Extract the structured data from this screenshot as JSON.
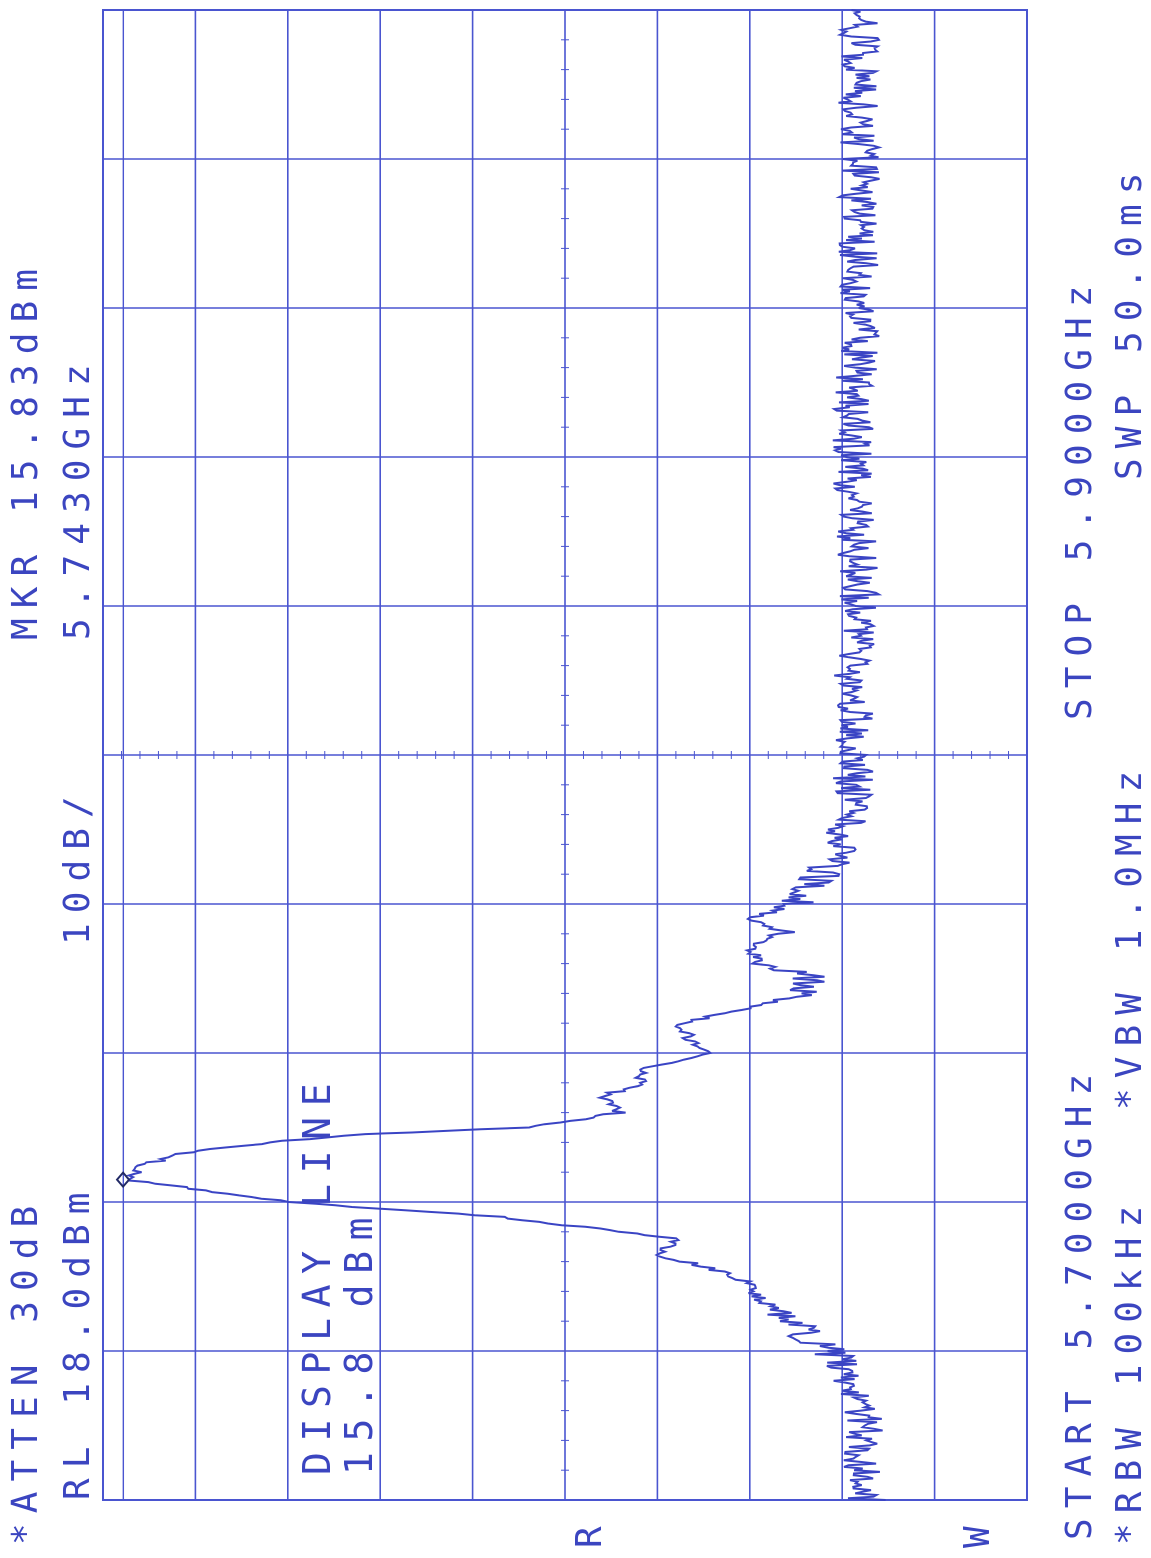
{
  "chart_data": {
    "type": "line",
    "x_unit": "GHz",
    "y_unit": "dBm",
    "x_range": [
      5.7,
      5.9
    ],
    "reference_level_dbm": 18.0,
    "scale_db_per_div": 10,
    "y_range": [
      -82.0,
      18.0
    ],
    "grid": true,
    "marker": {
      "freq_ghz": 5.743,
      "level_dbm": 15.83
    },
    "display_line_dbm": 15.8,
    "series": [
      {
        "x": [
          5.7,
          5.705,
          5.71,
          5.715,
          5.718,
          5.72,
          5.722,
          5.725,
          5.727,
          5.729,
          5.731,
          5.733,
          5.735,
          5.7365,
          5.738,
          5.74,
          5.743,
          5.745,
          5.747,
          5.749,
          5.75,
          5.752,
          5.754,
          5.756,
          5.758,
          5.76,
          5.762,
          5.764,
          5.766,
          5.768,
          5.77,
          5.772,
          5.774,
          5.776,
          5.778,
          5.78,
          5.785,
          5.79,
          5.8,
          5.81,
          5.82,
          5.83,
          5.84,
          5.85,
          5.86,
          5.87,
          5.88,
          5.89,
          5.9
        ],
        "y": [
          -64.5,
          -64.0,
          -64.5,
          -63.5,
          -62.0,
          -61.0,
          -58.0,
          -55.5,
          -53.0,
          -52.0,
          -48.0,
          -42.0,
          -44.5,
          -35.0,
          -25.0,
          -2.0,
          15.5,
          13.5,
          8.0,
          -8.5,
          -28.0,
          -38.0,
          -36.0,
          -40.0,
          -41.0,
          -48.0,
          -45.5,
          -44.5,
          -52.0,
          -58.0,
          -58.5,
          -53.0,
          -52.0,
          -55.5,
          -52.0,
          -57.0,
          -60.5,
          -62.5,
          -63.5,
          -63.0,
          -64.0,
          -63.5,
          -63.0,
          -63.5,
          -64.0,
          -63.5,
          -64.0,
          -63.5,
          -64.0
        ]
      }
    ],
    "texts": {
      "atten": "*ATTEN 30dB",
      "rl": "RL 18.0dBm",
      "scale": "10dB/",
      "mkr": "MKR 15.83dBm",
      "mkr_freq": "5.7430GHz",
      "display_line": "DISPLAY LINE",
      "display_line_value": "15.8 dBm",
      "start": "START 5.7000GHz",
      "stop": "STOP 5.9000GHz",
      "rbw": "*RBW 100kHz",
      "vbw": "*VBW 1.0MHz",
      "swp": "SWP 50.0ms",
      "r_mark": "R",
      "w_mark": "W"
    },
    "colors": {
      "trace": "#3a44c4",
      "grid": "#4a55d0",
      "text": "#3b45c0"
    }
  }
}
